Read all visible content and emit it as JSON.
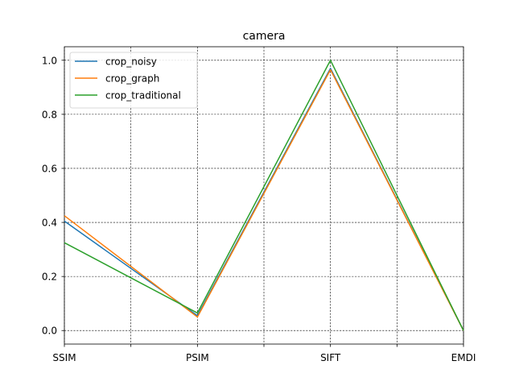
{
  "chart_data": {
    "type": "line",
    "title": "camera",
    "xlabel": "",
    "ylabel": "",
    "categories": [
      "SSIM",
      "PSIM",
      "SIFT",
      "EMDI"
    ],
    "y_ticks": [
      "0.0",
      "0.2",
      "0.4",
      "0.6",
      "0.8",
      "1.0"
    ],
    "y_tick_values": [
      0.0,
      0.2,
      0.4,
      0.6,
      0.8,
      1.0
    ],
    "ylim": [
      -0.05,
      1.05
    ],
    "grid": true,
    "legend_position": "top-left",
    "series": [
      {
        "name": "crop_noisy",
        "color": "#1f77b4",
        "values": [
          0.405,
          0.055,
          0.97,
          0.0
        ]
      },
      {
        "name": "crop_graph",
        "color": "#ff7f0e",
        "values": [
          0.425,
          0.05,
          0.965,
          0.0
        ]
      },
      {
        "name": "crop_traditional",
        "color": "#2ca02c",
        "values": [
          0.325,
          0.065,
          1.0,
          0.0
        ]
      }
    ]
  }
}
